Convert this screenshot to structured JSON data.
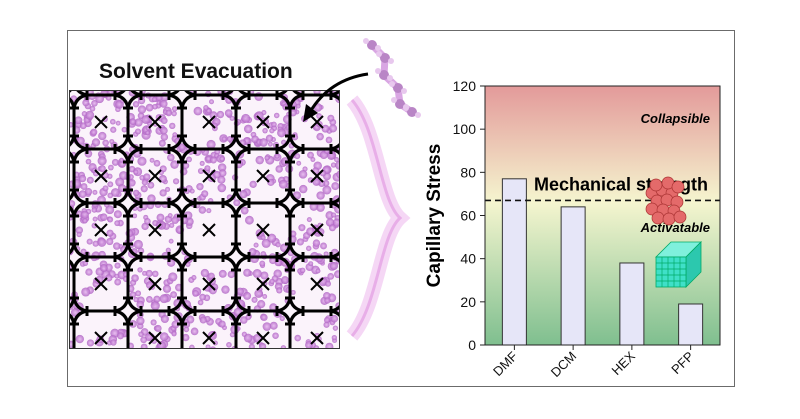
{
  "panel": {
    "title": "Solvent Evacuation"
  },
  "chart_data": {
    "type": "bar",
    "categories": [
      "DMF",
      "DCM",
      "HEX",
      "PFP"
    ],
    "values": [
      77,
      64,
      38,
      19
    ],
    "ylabel": "Capillary Stress",
    "xlabel": "",
    "ylim": [
      0,
      120
    ],
    "yticks": [
      0,
      20,
      40,
      60,
      80,
      100,
      120
    ],
    "grid": false,
    "threshold": {
      "value": 67,
      "label": "Mechanical strength"
    },
    "annotations": {
      "upper_region": "Collapsible",
      "lower_region": "Activatable"
    },
    "colors": {
      "bar_fill": "#e6e6f8",
      "bar_stroke": "#333333",
      "bg_top": "#e39a9a",
      "bg_mid": "#f5f5cf",
      "bg_bottom": "#7fbf8f",
      "molecule": "#c27cd2",
      "framework": "#000000",
      "collapsed_cube": "#e46a6a",
      "intact_cube": "#3fe0c8"
    }
  }
}
